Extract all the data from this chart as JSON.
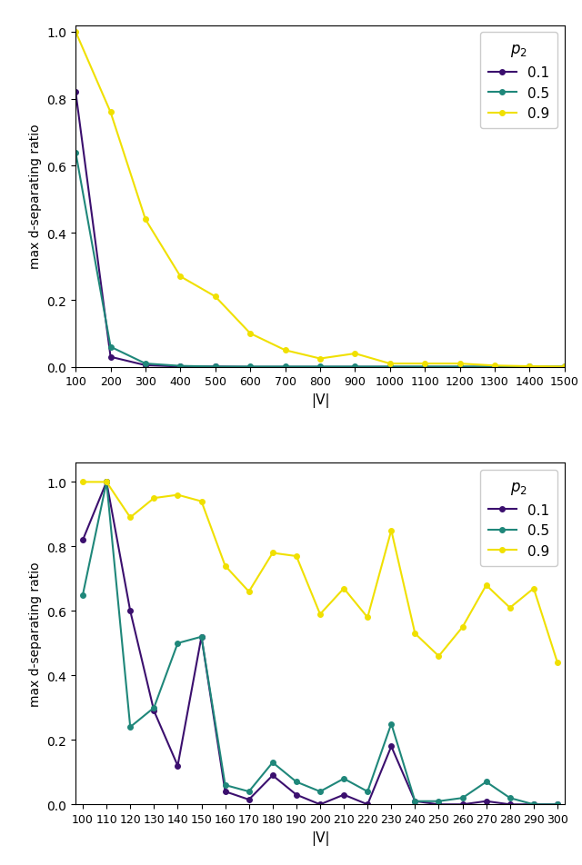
{
  "top": {
    "x": [
      100,
      200,
      300,
      400,
      500,
      600,
      700,
      800,
      900,
      1000,
      1100,
      1200,
      1300,
      1400,
      1500
    ],
    "p01": [
      0.82,
      0.03,
      0.005,
      0.001,
      0.001,
      0.0,
      0.0,
      0.0,
      0.0,
      0.0,
      0.0,
      0.0,
      0.0,
      0.0,
      0.0
    ],
    "p05": [
      0.64,
      0.06,
      0.01,
      0.003,
      0.001,
      0.001,
      0.001,
      0.001,
      0.001,
      0.001,
      0.001,
      0.001,
      0.001,
      0.001,
      0.001
    ],
    "p09": [
      1.0,
      0.76,
      0.44,
      0.27,
      0.21,
      0.1,
      0.05,
      0.025,
      0.04,
      0.01,
      0.01,
      0.01,
      0.004,
      0.002,
      0.001
    ],
    "xlabel": "|V|",
    "ylabel": "max d-separating ratio",
    "xlim": [
      100,
      1500
    ],
    "ylim": [
      0.0,
      1.02
    ],
    "xticks": [
      100,
      200,
      300,
      400,
      500,
      600,
      700,
      800,
      900,
      1000,
      1100,
      1200,
      1300,
      1400,
      1500
    ]
  },
  "bottom": {
    "x": [
      100,
      110,
      120,
      130,
      140,
      150,
      160,
      170,
      180,
      190,
      200,
      210,
      220,
      230,
      240,
      250,
      260,
      270,
      280,
      290,
      300
    ],
    "p01": [
      0.82,
      1.0,
      0.6,
      0.29,
      0.12,
      0.52,
      0.04,
      0.015,
      0.09,
      0.03,
      0.0,
      0.03,
      0.0,
      0.18,
      0.01,
      0.0,
      0.0,
      0.01,
      0.0,
      0.0,
      0.0
    ],
    "p05": [
      0.65,
      1.0,
      0.24,
      0.3,
      0.5,
      0.52,
      0.06,
      0.04,
      0.13,
      0.07,
      0.04,
      0.08,
      0.04,
      0.25,
      0.01,
      0.01,
      0.02,
      0.07,
      0.02,
      0.0,
      0.0
    ],
    "p09": [
      1.0,
      1.0,
      0.89,
      0.95,
      0.96,
      0.94,
      0.74,
      0.66,
      0.78,
      0.77,
      0.59,
      0.67,
      0.58,
      0.85,
      0.53,
      0.46,
      0.55,
      0.68,
      0.61,
      0.67,
      0.44
    ],
    "xlabel": "",
    "ylabel": "max d-separating ratio",
    "xlim": [
      97,
      303
    ],
    "ylim": [
      0.0,
      1.06
    ],
    "xticks": [
      100,
      110,
      120,
      130,
      140,
      150,
      160,
      170,
      180,
      190,
      200,
      210,
      220,
      230,
      240,
      250,
      260,
      270,
      280,
      290,
      300
    ]
  },
  "colors": {
    "p01": "#3b0f6e",
    "p05": "#1f877a",
    "p09": "#f0e000"
  },
  "legend_title": "$p_2$",
  "legend_labels": [
    "0.1",
    "0.5",
    "0.9"
  ],
  "marker_size": 4,
  "line_width": 1.5
}
